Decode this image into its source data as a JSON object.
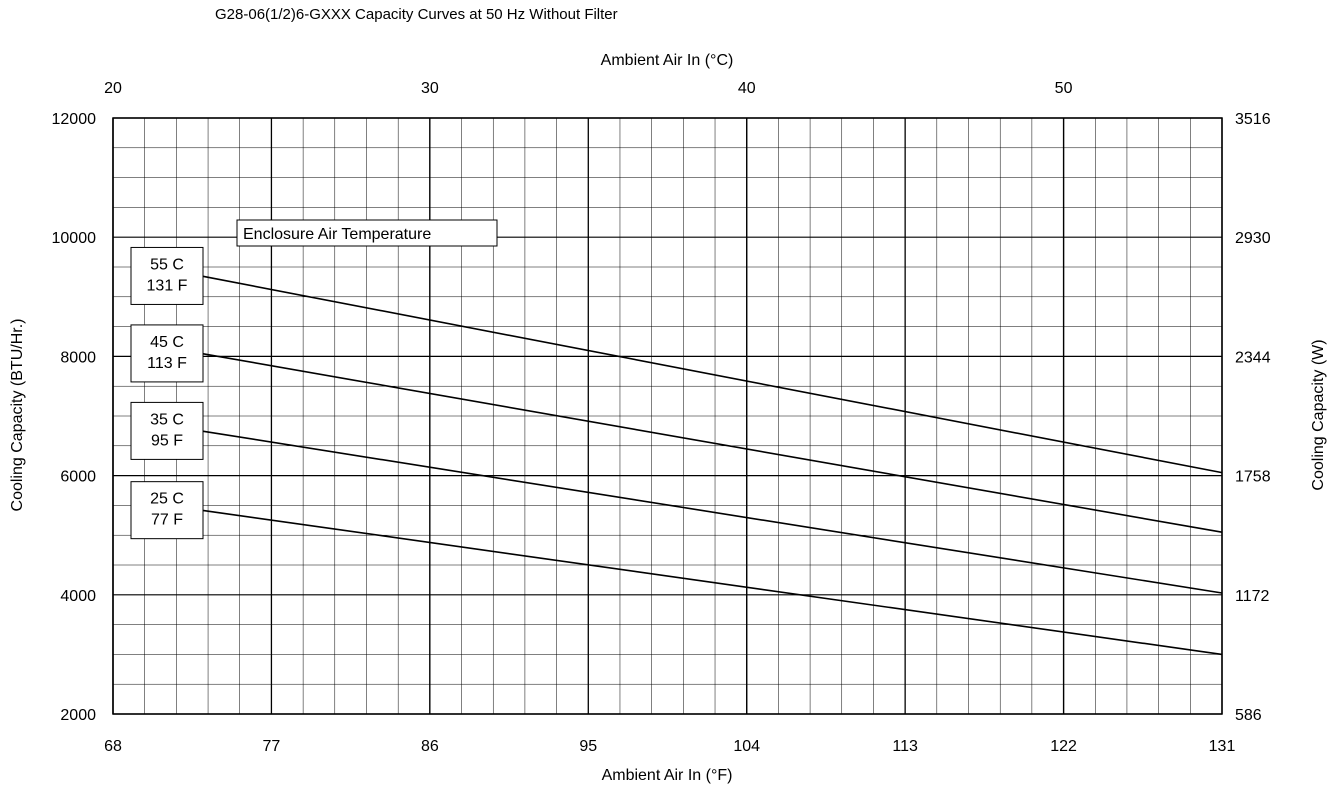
{
  "chart_data": {
    "type": "line",
    "title": "G28-06(1/2)6-GXXX Capacity Curves at 50 Hz Without Filter",
    "xlabel": "Ambient Air In (°F)",
    "x2label": "Ambient Air In (°C)",
    "ylabel": "Cooling Capacity (BTU/Hr.)",
    "y2label": "Cooling Capacity (W)",
    "xlim": [
      68,
      131
    ],
    "ylim": [
      2000,
      12000
    ],
    "x2lim": [
      20,
      55
    ],
    "xticks": [
      "68",
      "77",
      "86",
      "95",
      "104",
      "113",
      "122",
      "131"
    ],
    "x2ticks": [
      "20",
      "30",
      "40",
      "50"
    ],
    "yticks": [
      "2000",
      "4000",
      "6000",
      "8000",
      "10000",
      "12000"
    ],
    "y2ticks": [
      "586",
      "1172",
      "1758",
      "2344",
      "2930",
      "3516"
    ],
    "grid": true,
    "legend_title": "Enclosure Air Temperature",
    "series": [
      {
        "name_lines": [
          "55 C",
          "131 F"
        ],
        "x": [
          73,
          131
        ],
        "y": [
          9350,
          6050
        ]
      },
      {
        "name_lines": [
          "45 C",
          "113 F"
        ],
        "x": [
          73,
          131
        ],
        "y": [
          8050,
          5050
        ]
      },
      {
        "name_lines": [
          "35 C",
          "95 F"
        ],
        "x": [
          73,
          131
        ],
        "y": [
          6750,
          4030
        ]
      },
      {
        "name_lines": [
          "25 C",
          "77 F"
        ],
        "x": [
          73,
          131
        ],
        "y": [
          5420,
          3000
        ]
      }
    ]
  }
}
